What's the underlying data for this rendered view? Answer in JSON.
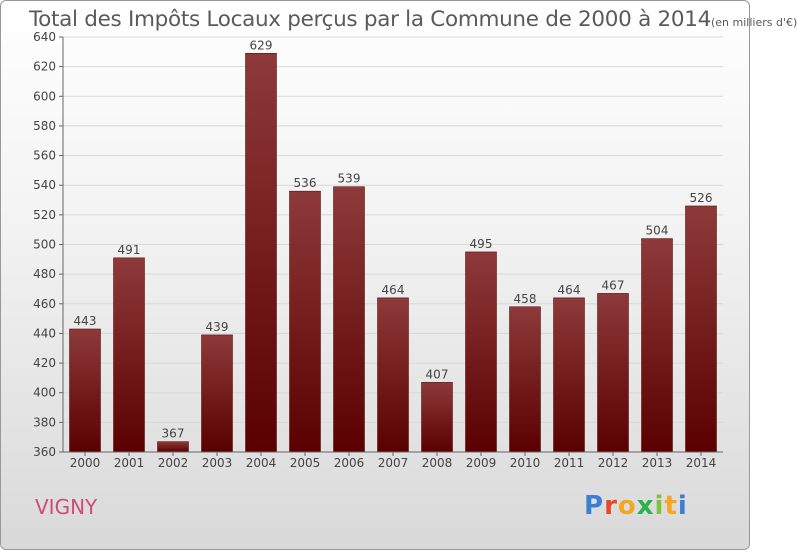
{
  "title": "Total des Impôts Locaux perçus par la Commune de 2000 à 2014",
  "title_unit": "(en milliers d'€)",
  "commune": "VIGNY",
  "logo_text": "Proxiti",
  "colors": {
    "bar_light": "#8e3a3a",
    "bar_dark": "#5a0000",
    "grid": "#d8d8d8",
    "text": "#444444",
    "commune": "#d14a7a"
  },
  "chart_data": {
    "type": "bar",
    "title": "Total des Impôts Locaux perçus par la Commune de 2000 à 2014 (en milliers d'€)",
    "xlabel": "",
    "ylabel": "",
    "categories": [
      "2000",
      "2001",
      "2002",
      "2003",
      "2004",
      "2005",
      "2006",
      "2007",
      "2008",
      "2009",
      "2010",
      "2011",
      "2012",
      "2013",
      "2014"
    ],
    "values": [
      443,
      491,
      367,
      439,
      629,
      536,
      539,
      464,
      407,
      495,
      458,
      464,
      467,
      504,
      526
    ],
    "ylim": [
      360,
      640
    ],
    "yticks": [
      360,
      380,
      400,
      420,
      440,
      460,
      480,
      500,
      520,
      540,
      560,
      580,
      600,
      620,
      640
    ],
    "grid": true
  }
}
